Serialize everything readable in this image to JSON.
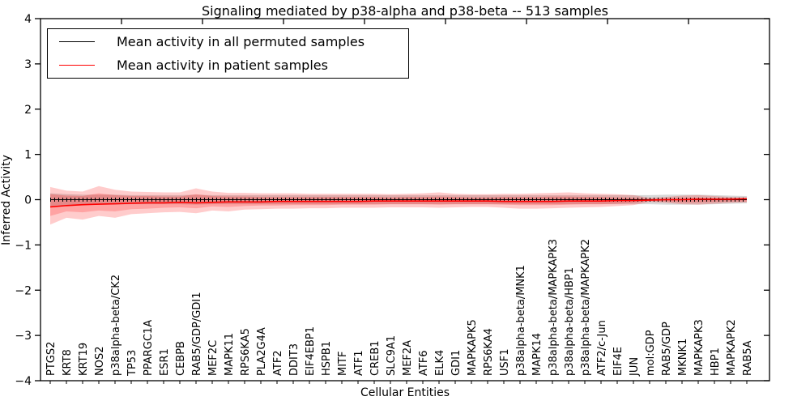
{
  "figure": {
    "title": "Signaling mediated by p38-alpha and p38-beta -- 513 samples",
    "xlabel": "Cellular Entities",
    "ylabel": "Inferred Activity"
  },
  "legend": {
    "position": "upper left",
    "entries": [
      {
        "label": "Mean activity in all permuted samples",
        "color": "#000000"
      },
      {
        "label": "Mean activity in patient samples",
        "color": "#ff0000"
      }
    ]
  },
  "colors": {
    "permuted_line": "#000000",
    "patient_line": "#ff0000",
    "patient_band_fill": "rgba(255,0,0,0.20)",
    "permuted_band_fill": "rgba(125,125,125,0.30)",
    "axis": "#000000"
  },
  "chart_data": {
    "type": "line",
    "title": "Signaling mediated by p38-alpha and p38-beta -- 513 samples",
    "xlabel": "Cellular Entities",
    "ylabel": "Inferred Activity",
    "ylim": [
      -4,
      4
    ],
    "yticks": [
      -4,
      -3,
      -2,
      -1,
      0,
      1,
      2,
      3,
      4
    ],
    "grid": false,
    "legend_position": "upper left",
    "categories": [
      "PTGS2",
      "KRT8",
      "KRT19",
      "NOS2",
      "p38alpha-beta/CK2",
      "TP53",
      "PPARGC1A",
      "ESR1",
      "CEBPB",
      "RAB5/GDP/GDI1",
      "MEF2C",
      "MAPK11",
      "RPS6KA5",
      "PLA2G4A",
      "ATF2",
      "DDIT3",
      "EIF4EBP1",
      "HSPB1",
      "MITF",
      "ATF1",
      "CREB1",
      "SLC9A1",
      "MEF2A",
      "ATF6",
      "ELK4",
      "GDI1",
      "MAPKAPK5",
      "RPS6KA4",
      "USF1",
      "p38alpha-beta/MNK1",
      "MAPK14",
      "p38alpha-beta/MAPKAPK3",
      "p38alpha-beta/HBP1",
      "p38alpha-beta/MAPKAPK2",
      "ATF2/c-Jun",
      "EIF4E",
      "JUN",
      "mol:GDP",
      "RAB5/GDP",
      "MKNK1",
      "MAPKAPK3",
      "HBP1",
      "MAPKAPK2",
      "RAB5A"
    ],
    "series": [
      {
        "name": "Mean activity in all permuted samples",
        "color": "#000000",
        "values": [
          0,
          0,
          0,
          0,
          0,
          0,
          0,
          0,
          0,
          0,
          0,
          0,
          0,
          0,
          0,
          0,
          0,
          0,
          0,
          0,
          0,
          0,
          0,
          0,
          0,
          0,
          0,
          0,
          0,
          0,
          0,
          0,
          0,
          0,
          0,
          0,
          0,
          0,
          0,
          0,
          0,
          0,
          0,
          0
        ]
      },
      {
        "name": "Mean activity in patient samples",
        "color": "#ff0000",
        "values": [
          -0.16,
          -0.13,
          -0.11,
          -0.1,
          -0.09,
          -0.08,
          -0.07,
          -0.07,
          -0.06,
          -0.07,
          -0.06,
          -0.05,
          -0.05,
          -0.05,
          -0.04,
          -0.04,
          -0.04,
          -0.04,
          -0.04,
          -0.04,
          -0.03,
          -0.03,
          -0.03,
          -0.03,
          -0.03,
          -0.03,
          -0.03,
          -0.03,
          -0.04,
          -0.04,
          -0.04,
          -0.04,
          -0.03,
          -0.03,
          -0.03,
          -0.02,
          -0.02,
          -0.01,
          0.0,
          0.0,
          0.01,
          0.01,
          0.01,
          0.02
        ]
      }
    ],
    "bands": [
      {
        "name": "permuted-std-band",
        "fill": "rgba(125,125,125,0.30)",
        "upper": [
          0.14,
          0.12,
          0.11,
          0.11,
          0.11,
          0.1,
          0.1,
          0.1,
          0.1,
          0.11,
          0.1,
          0.1,
          0.1,
          0.1,
          0.1,
          0.1,
          0.1,
          0.1,
          0.1,
          0.1,
          0.1,
          0.1,
          0.1,
          0.1,
          0.1,
          0.1,
          0.1,
          0.1,
          0.1,
          0.1,
          0.1,
          0.1,
          0.1,
          0.1,
          0.1,
          0.1,
          0.1,
          0.1,
          0.11,
          0.11,
          0.11,
          0.1,
          0.09,
          0.08
        ],
        "lower": [
          -0.14,
          -0.12,
          -0.11,
          -0.11,
          -0.11,
          -0.1,
          -0.1,
          -0.1,
          -0.1,
          -0.11,
          -0.1,
          -0.1,
          -0.1,
          -0.1,
          -0.1,
          -0.1,
          -0.1,
          -0.1,
          -0.1,
          -0.1,
          -0.1,
          -0.1,
          -0.1,
          -0.1,
          -0.1,
          -0.1,
          -0.1,
          -0.1,
          -0.1,
          -0.1,
          -0.1,
          -0.1,
          -0.1,
          -0.1,
          -0.1,
          -0.1,
          -0.1,
          -0.1,
          -0.11,
          -0.11,
          -0.11,
          -0.1,
          -0.09,
          -0.08
        ]
      },
      {
        "name": "patient-outer-band",
        "fill": "rgba(255,0,0,0.20)",
        "upper": [
          0.28,
          0.2,
          0.18,
          0.3,
          0.22,
          0.18,
          0.17,
          0.16,
          0.16,
          0.25,
          0.18,
          0.15,
          0.15,
          0.14,
          0.14,
          0.14,
          0.13,
          0.13,
          0.13,
          0.13,
          0.13,
          0.12,
          0.13,
          0.14,
          0.16,
          0.13,
          0.12,
          0.12,
          0.13,
          0.13,
          0.14,
          0.15,
          0.16,
          0.14,
          0.13,
          0.12,
          0.1,
          0.04,
          0.06,
          0.09,
          0.1,
          0.08,
          0.06,
          0.05
        ],
        "lower": [
          -0.55,
          -0.4,
          -0.44,
          -0.36,
          -0.4,
          -0.32,
          -0.3,
          -0.28,
          -0.27,
          -0.3,
          -0.24,
          -0.26,
          -0.22,
          -0.21,
          -0.2,
          -0.2,
          -0.19,
          -0.19,
          -0.18,
          -0.18,
          -0.18,
          -0.17,
          -0.17,
          -0.17,
          -0.18,
          -0.17,
          -0.16,
          -0.16,
          -0.18,
          -0.2,
          -0.2,
          -0.19,
          -0.18,
          -0.17,
          -0.16,
          -0.14,
          -0.12,
          -0.05,
          -0.07,
          -0.1,
          -0.11,
          -0.09,
          -0.07,
          -0.06
        ]
      },
      {
        "name": "patient-inner-band",
        "fill": "rgba(255,0,0,0.20)",
        "upper": [
          0.12,
          0.09,
          0.08,
          0.14,
          0.1,
          0.08,
          0.08,
          0.07,
          0.07,
          0.12,
          0.08,
          0.07,
          0.07,
          0.06,
          0.06,
          0.06,
          0.06,
          0.06,
          0.06,
          0.06,
          0.06,
          0.05,
          0.06,
          0.06,
          0.07,
          0.06,
          0.05,
          0.05,
          0.06,
          0.06,
          0.06,
          0.07,
          0.07,
          0.06,
          0.06,
          0.05,
          0.04,
          0.02,
          0.03,
          0.04,
          0.04,
          0.03,
          0.03,
          0.02
        ],
        "lower": [
          -0.36,
          -0.26,
          -0.28,
          -0.24,
          -0.26,
          -0.21,
          -0.2,
          -0.18,
          -0.17,
          -0.19,
          -0.15,
          -0.16,
          -0.14,
          -0.13,
          -0.13,
          -0.12,
          -0.12,
          -0.12,
          -0.11,
          -0.11,
          -0.11,
          -0.1,
          -0.1,
          -0.1,
          -0.11,
          -0.1,
          -0.1,
          -0.1,
          -0.11,
          -0.12,
          -0.12,
          -0.12,
          -0.11,
          -0.1,
          -0.1,
          -0.09,
          -0.07,
          -0.03,
          -0.04,
          -0.06,
          -0.06,
          -0.05,
          -0.04,
          -0.04
        ]
      }
    ]
  }
}
